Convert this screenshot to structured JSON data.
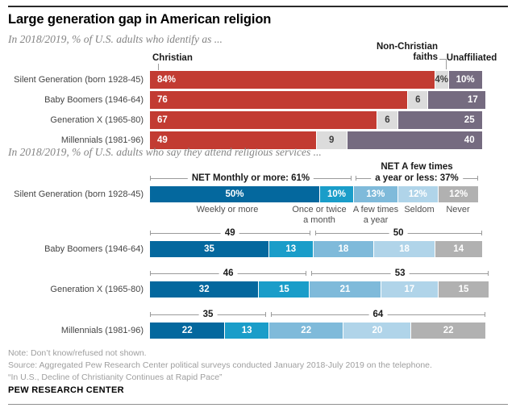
{
  "title": "Large generation gap in American religion",
  "identify_headers": {
    "christian": "Christian",
    "non_christian": "Non-Christian\nfaiths",
    "unaffiliated": "Unaffiliated"
  },
  "net_headers": {
    "left": "NET Monthly or more: 61%",
    "right_line1": "NET A few times",
    "right_line2": "a year or less: 37%"
  },
  "notes": [
    "Note: Don’t know/refused not shown.",
    "Source: Aggregated Pew Research Center political surveys conducted January 2018-July 2019 on the telephone.",
    "“In U.S., Decline of Christianity Continues at Rapid Pace”"
  ],
  "footer_brand": "PEW RESEARCH CENTER",
  "chart_data": [
    {
      "type": "bar",
      "orientation": "horizontal",
      "stacked": true,
      "grid": false,
      "legend_position": "top",
      "title": "In 2018/2019, % of U.S. adults who identify as ...",
      "xlim": [
        0,
        100
      ],
      "categories": [
        "Silent Generation (born 1928-45)",
        "Baby Boomers (1946-64)",
        "Generation X (1965-80)",
        "Millennials (1981-96)"
      ],
      "series": [
        {
          "name": "Christian",
          "color": "#c23b32",
          "values": [
            84,
            76,
            67,
            49
          ],
          "value_labels": [
            "84%",
            "76",
            "67",
            "49"
          ]
        },
        {
          "name": "Non-Christian faiths",
          "color": "#dcdcdc",
          "values": [
            4,
            6,
            6,
            9
          ],
          "value_labels": [
            "4%",
            "6",
            "6",
            "9"
          ]
        },
        {
          "name": "Unaffiliated",
          "color": "#756b80",
          "values": [
            10,
            17,
            25,
            40
          ],
          "value_labels": [
            "10%",
            "17",
            "25",
            "40"
          ]
        }
      ]
    },
    {
      "type": "bar",
      "orientation": "horizontal",
      "stacked": true,
      "grid": false,
      "legend_position": "above-first-row",
      "title": "In 2018/2019, % of U.S. adults who say they attend religious services ...",
      "xlim": [
        0,
        100
      ],
      "categories": [
        "Silent Generation (born 1928-45)",
        "Baby Boomers (1946-64)",
        "Generation X (1965-80)",
        "Millennials (1981-96)"
      ],
      "series": [
        {
          "name": "Weekly or more",
          "color": "#04689e",
          "values": [
            50,
            35,
            32,
            22
          ],
          "value_labels": [
            "50%",
            "35",
            "32",
            "22"
          ]
        },
        {
          "name": "Once or twice a month",
          "color": "#1a9dc9",
          "values": [
            10,
            13,
            15,
            13
          ],
          "value_labels": [
            "10%",
            "13",
            "15",
            "13"
          ]
        },
        {
          "name": "A few times a year",
          "color": "#7fbada",
          "values": [
            13,
            18,
            21,
            22
          ],
          "value_labels": [
            "13%",
            "18",
            "21",
            "22"
          ]
        },
        {
          "name": "Seldom",
          "color": "#b0d4e9",
          "values": [
            12,
            18,
            17,
            20
          ],
          "value_labels": [
            "12%",
            "18",
            "17",
            "20"
          ]
        },
        {
          "name": "Never",
          "color": "#b1b1b1",
          "values": [
            12,
            14,
            15,
            22
          ],
          "value_labels": [
            "12%",
            "14",
            "15",
            "22"
          ]
        }
      ],
      "category_captions": [
        "Weekly or more",
        "Once or twice\na month",
        "A few times\na year",
        "Seldom",
        "Never"
      ],
      "nets": {
        "left": {
          "label": "NET Monthly or more",
          "values": [
            61,
            49,
            46,
            35
          ]
        },
        "right": {
          "label": "NET A few times a year or less",
          "values": [
            37,
            50,
            53,
            64
          ]
        }
      }
    }
  ]
}
